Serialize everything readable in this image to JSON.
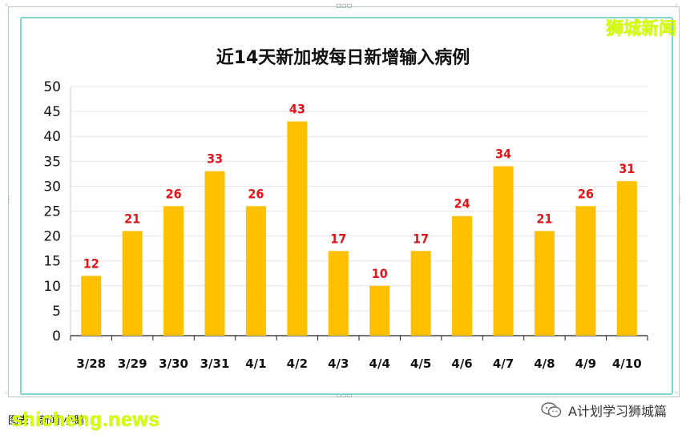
{
  "brand": "狮城新闻",
  "footer": {
    "left_text": "图表：新闻·小鹅",
    "watermark": "shicheng.news",
    "right_text": "A计划学习狮城篇",
    "wechat_icon": "wechat-icon"
  },
  "colors": {
    "bar": "#ffc000",
    "label": "#e0141b",
    "axis": "#222222",
    "grid": "#e6e6e6",
    "frame_accent": "#7fd6d0",
    "brand": "#d6ff00"
  },
  "chart_data": {
    "type": "bar",
    "title": "近14天新加坡每日新增输入病例",
    "xlabel": "",
    "ylabel": "",
    "categories": [
      "3/28",
      "3/29",
      "3/30",
      "3/31",
      "4/1",
      "4/2",
      "4/3",
      "4/4",
      "4/5",
      "4/6",
      "4/7",
      "4/8",
      "4/9",
      "4/10"
    ],
    "values": [
      12,
      21,
      26,
      33,
      26,
      43,
      17,
      10,
      17,
      24,
      34,
      21,
      26,
      31
    ],
    "ylim": [
      0,
      50
    ],
    "yticks": [
      0,
      5,
      10,
      15,
      20,
      25,
      30,
      35,
      40,
      45,
      50
    ],
    "grid": true,
    "legend": "none",
    "data_labels": true
  }
}
